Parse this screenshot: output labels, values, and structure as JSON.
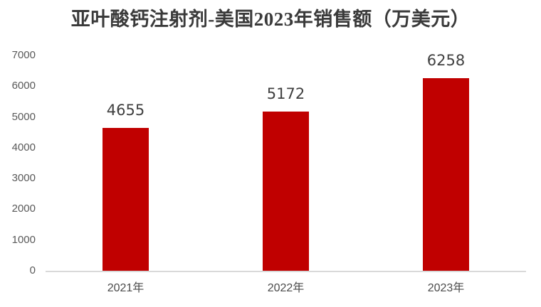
{
  "chart_data": {
    "type": "bar",
    "title": "亚叶酸钙注射剂-美国2023年销售额（万美元）",
    "categories": [
      "2021年",
      "2022年",
      "2023年"
    ],
    "values": [
      4655,
      5172,
      6258
    ],
    "data_labels": [
      "4655",
      "5172",
      "6258"
    ],
    "xlabel": "",
    "ylabel": "",
    "ylim": [
      0,
      7000
    ],
    "yticks": [
      0,
      1000,
      2000,
      3000,
      4000,
      5000,
      6000,
      7000
    ],
    "grid": false,
    "legend": null,
    "bar_color": "#C00000",
    "colors": {
      "title_text": "#3A3A3A",
      "axis_tick_text": "#595959",
      "category_text": "#4A4A4A",
      "data_label_text": "#404040",
      "axis_line": "#D9D9D9",
      "background": "#FFFFFF"
    }
  }
}
